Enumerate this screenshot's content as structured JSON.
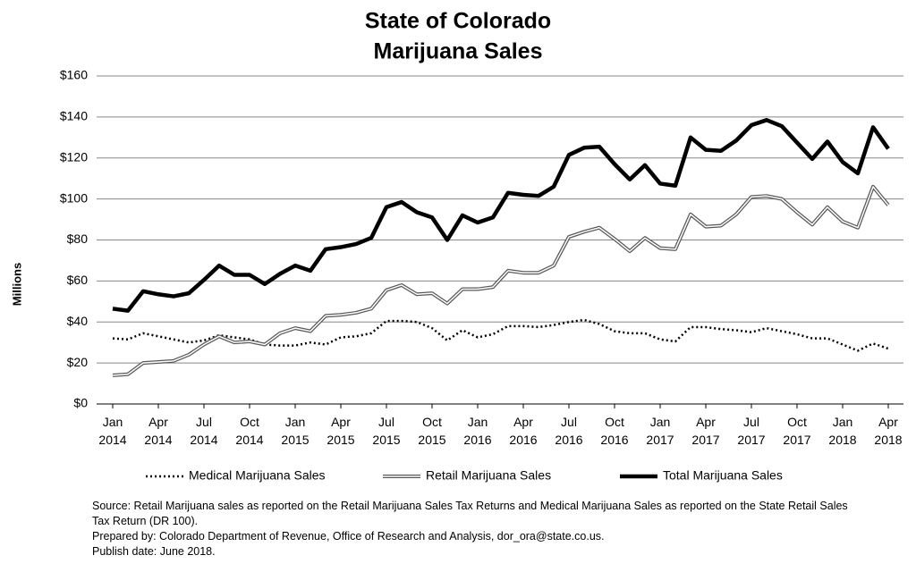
{
  "chart_data": {
    "type": "line",
    "title": [
      "State of Colorado",
      "Marijuana Sales"
    ],
    "ylabel": "Millions",
    "categories": [
      "Jan 2014",
      null,
      null,
      "Apr 2014",
      null,
      null,
      "Jul 2014",
      null,
      null,
      "Oct 2014",
      null,
      null,
      "Jan 2015",
      null,
      null,
      "Apr 2015",
      null,
      null,
      "Jul 2015",
      null,
      null,
      "Oct 2015",
      null,
      null,
      "Jan 2016",
      null,
      null,
      "Apr 2016",
      null,
      null,
      "Jul 2016",
      null,
      null,
      "Oct 2016",
      null,
      null,
      "Jan 2017",
      null,
      null,
      "Apr 2017",
      null,
      null,
      "Jul 2017",
      null,
      null,
      "Oct 2017",
      null,
      null,
      "Jan 2018",
      null,
      null,
      "Apr 2018"
    ],
    "series": [
      {
        "name": "Medical Marijuana Sales",
        "color": "#000000",
        "style": "dotted",
        "values": [
          32,
          31.5,
          34.5,
          33,
          31.5,
          30,
          31,
          33.5,
          32.5,
          31.5,
          29,
          28.5,
          28.5,
          30,
          29,
          32.5,
          33,
          34.5,
          40.5,
          40.5,
          40,
          37,
          31,
          36,
          32.5,
          34,
          38,
          38,
          37.5,
          38.5,
          40,
          41,
          39,
          35.5,
          34.5,
          34.5,
          31.5,
          30.5,
          37.5,
          37.5,
          36.5,
          36,
          35,
          37,
          35.5,
          34,
          32,
          32,
          29,
          26,
          29.5,
          27
        ]
      },
      {
        "name": "Retail Marijuana Sales",
        "color": "#595959",
        "style": "double",
        "values": [
          14,
          14.5,
          20,
          20.5,
          21,
          24,
          29,
          33,
          30,
          30.5,
          29,
          34.5,
          37,
          35.5,
          43,
          43.5,
          44.5,
          46.5,
          55.5,
          58,
          53.5,
          54,
          49,
          56,
          56,
          57,
          65,
          64,
          64,
          67.5,
          81.5,
          84,
          86,
          80.5,
          74.5,
          81,
          76,
          75.5,
          92.5,
          86.5,
          87,
          92.5,
          101,
          101.5,
          100,
          93.5,
          87.5,
          96,
          89,
          86,
          106,
          97
        ]
      },
      {
        "name": "Total Marijuana Sales",
        "color": "#000000",
        "style": "solid",
        "values": [
          46.5,
          45.5,
          55,
          53.5,
          52.5,
          54,
          60.5,
          67.5,
          63,
          63,
          58.5,
          63.5,
          67.5,
          65,
          75.5,
          76.5,
          78,
          81,
          96,
          98.5,
          93.5,
          91,
          80,
          92,
          88.5,
          91,
          103,
          102,
          101.5,
          106,
          121.5,
          125,
          125.5,
          117,
          109.5,
          116.5,
          107.5,
          106.5,
          130,
          124,
          123.5,
          128.5,
          136,
          138.5,
          135.5,
          127.5,
          119.5,
          128,
          118,
          112.5,
          135,
          124.5
        ]
      }
    ],
    "ylim": [
      0,
      160
    ],
    "yticks": [
      {
        "value": 0,
        "label": "$0"
      },
      {
        "value": 20,
        "label": "$20"
      },
      {
        "value": 40,
        "label": "$40"
      },
      {
        "value": 60,
        "label": "$60"
      },
      {
        "value": 80,
        "label": "$80"
      },
      {
        "value": 100,
        "label": "$100"
      },
      {
        "value": 120,
        "label": "$120"
      },
      {
        "value": 140,
        "label": "$140"
      },
      {
        "value": 160,
        "label": "$160"
      }
    ],
    "grid": true,
    "notes": [
      "Source: Retail Marijuana sales as reported on the Retail Marijuana Sales Tax Returns and Medical Marijuana Sales as reported on the State Retail Sales",
      "Tax Return (DR 100).",
      "Prepared by: Colorado Department of Revenue, Office of Research and Analysis, dor_ora@state.co.us.",
      "Publish date: June 2018."
    ]
  }
}
